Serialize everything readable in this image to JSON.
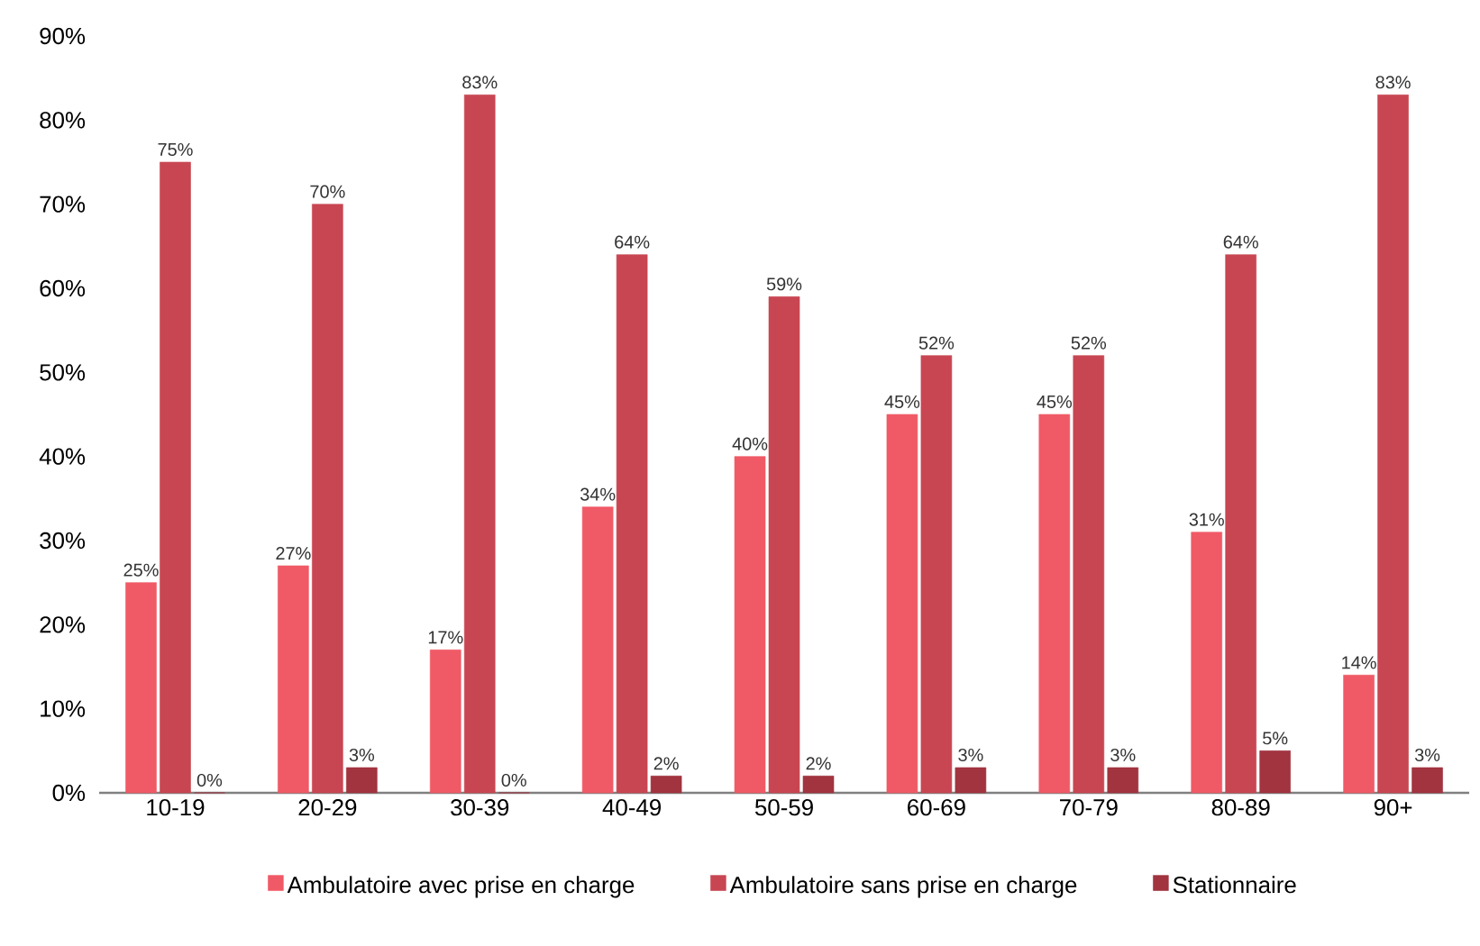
{
  "chart_data": {
    "type": "bar",
    "categories": [
      "10-19",
      "20-29",
      "30-39",
      "40-49",
      "50-59",
      "60-69",
      "70-79",
      "80-89",
      "90+"
    ],
    "series": [
      {
        "name": "Ambulatoire avec prise en charge",
        "color": "#f05a67",
        "values": [
          25,
          27,
          17,
          34,
          40,
          45,
          45,
          31,
          14
        ],
        "value_labels": [
          "25%",
          "27%",
          "17%",
          "34%",
          "40%",
          "45%",
          "45%",
          "31%",
          "14%"
        ]
      },
      {
        "name": "Ambulatoire sans prise en charge",
        "color": "#c84652",
        "values": [
          75,
          70,
          83,
          64,
          59,
          52,
          52,
          64,
          83
        ],
        "value_labels": [
          "75%",
          "70%",
          "83%",
          "64%",
          "59%",
          "52%",
          "52%",
          "64%",
          "83%"
        ]
      },
      {
        "name": "Stationnaire",
        "color": "#a1343f",
        "values": [
          0,
          3,
          0,
          2,
          2,
          3,
          3,
          5,
          3
        ],
        "value_labels": [
          "0%",
          "3%",
          "0%",
          "2%",
          "2%",
          "3%",
          "3%",
          "5%",
          "3%"
        ]
      }
    ],
    "ylim": [
      0,
      90
    ],
    "yticks": [
      {
        "value": 0,
        "label": "0%"
      },
      {
        "value": 10,
        "label": "10%"
      },
      {
        "value": 20,
        "label": "20%"
      },
      {
        "value": 30,
        "label": "30%"
      },
      {
        "value": 40,
        "label": "40%"
      },
      {
        "value": 50,
        "label": "50%"
      },
      {
        "value": 60,
        "label": "60%"
      },
      {
        "value": 70,
        "label": "70%"
      },
      {
        "value": 80,
        "label": "80%"
      },
      {
        "value": 90,
        "label": "90%"
      }
    ],
    "legend": "bottom"
  }
}
